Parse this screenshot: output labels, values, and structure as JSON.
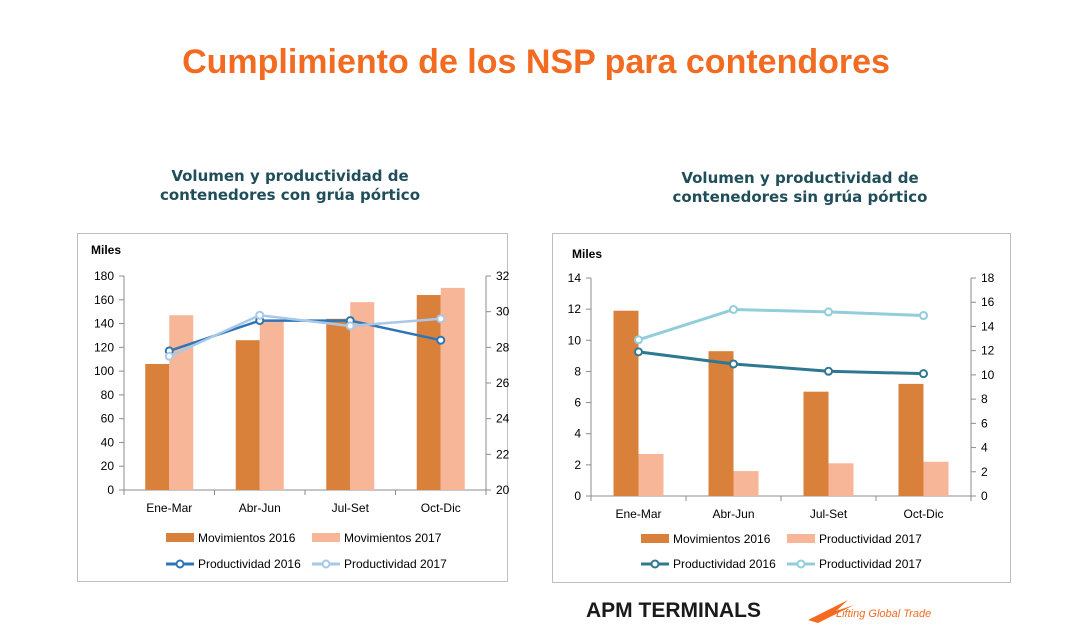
{
  "page": {
    "title": "Cumplimiento de los NSP para contendores",
    "accent_color": "#f26b21"
  },
  "logo": {
    "brand": "APM TERMINALS",
    "tagline": "Lifting Global Trade"
  },
  "chart_data": [
    {
      "type": "bar",
      "title": "Volumen y productividad de contenedores con grúa pórtico",
      "unit_label": "Miles",
      "categories": [
        "Ene-Mar",
        "Abr-Jun",
        "Jul-Set",
        "Oct-Dic"
      ],
      "ylim": [
        0,
        180
      ],
      "yticks": [
        0,
        20,
        40,
        60,
        80,
        100,
        120,
        140,
        160,
        180
      ],
      "y2lim": [
        20,
        32
      ],
      "y2ticks": [
        20,
        22,
        24,
        26,
        28,
        30,
        32
      ],
      "grid": false,
      "legend_position": "bottom",
      "bar_series": [
        {
          "name": "Movimientos 2016",
          "color": "#d9803b",
          "values": [
            106,
            126,
            144,
            164
          ]
        },
        {
          "name": "Movimientos 2017",
          "color": "#f7b697",
          "values": [
            147,
            143,
            158,
            170
          ]
        }
      ],
      "line_series": [
        {
          "name": "Productividad 2016",
          "color": "#2e75b6",
          "axis": "right",
          "values": [
            27.8,
            29.5,
            29.5,
            28.4
          ]
        },
        {
          "name": "Productividad 2017",
          "color": "#a9c8e8",
          "axis": "right",
          "values": [
            27.5,
            29.8,
            29.2,
            29.6
          ]
        }
      ]
    },
    {
      "type": "bar",
      "title": "Volumen y productividad de contenedores sin grúa pórtico",
      "unit_label": "Miles",
      "categories": [
        "Ene-Mar",
        "Abr-Jun",
        "Jul-Set",
        "Oct-Dic"
      ],
      "ylim": [
        0,
        14
      ],
      "yticks": [
        0,
        2,
        4,
        6,
        8,
        10,
        12,
        14
      ],
      "y2lim": [
        0,
        18
      ],
      "y2ticks": [
        0,
        2,
        4,
        6,
        8,
        10,
        12,
        14,
        16,
        18
      ],
      "grid": false,
      "legend_position": "bottom",
      "bar_series": [
        {
          "name": "Movimientos 2016",
          "color": "#d9803b",
          "values": [
            11.9,
            9.3,
            6.7,
            7.2
          ]
        },
        {
          "name": "Productividad 2017",
          "color": "#f7b697",
          "values": [
            2.7,
            1.6,
            2.1,
            2.2
          ]
        }
      ],
      "line_series": [
        {
          "name": "Productividad 2016",
          "color": "#2e7891",
          "axis": "right",
          "values": [
            11.9,
            10.9,
            10.3,
            10.1
          ]
        },
        {
          "name": "Productividad 2017",
          "color": "#92cddc",
          "axis": "right",
          "values": [
            12.9,
            15.4,
            15.2,
            14.9
          ]
        }
      ]
    }
  ]
}
